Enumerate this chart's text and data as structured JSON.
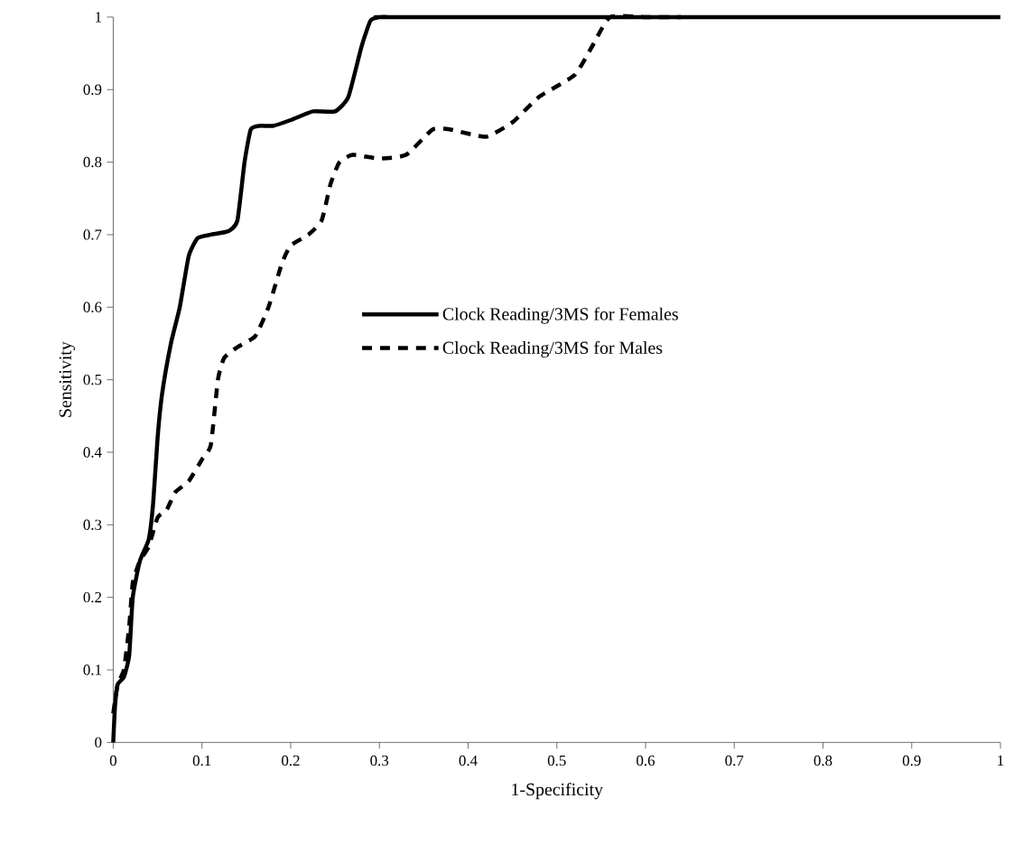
{
  "chart_data": {
    "type": "line",
    "xlabel": "1-Specificity",
    "ylabel": "Sensitivity",
    "xlim": [
      0,
      1
    ],
    "ylim": [
      0,
      1
    ],
    "xticks": [
      0,
      0.1,
      0.2,
      0.3,
      0.4,
      0.5,
      0.6,
      0.7,
      0.8,
      0.9,
      1
    ],
    "yticks": [
      0,
      0.1,
      0.2,
      0.3,
      0.4,
      0.5,
      0.6,
      0.7,
      0.8,
      0.9,
      1
    ],
    "grid": false,
    "legend": "center",
    "marker": "none",
    "series": [
      {
        "name": "Clock Reading/3MS for Females",
        "color": "#000000",
        "line_style": "solid",
        "x": [
          0,
          0.002,
          0.005,
          0.012,
          0.018,
          0.022,
          0.03,
          0.04,
          0.045,
          0.05,
          0.055,
          0.065,
          0.075,
          0.085,
          0.095,
          0.11,
          0.13,
          0.14,
          0.148,
          0.155,
          0.165,
          0.18,
          0.2,
          0.225,
          0.25,
          0.265,
          0.28,
          0.29,
          0.3,
          0.31,
          0.325,
          1
        ],
        "values": [
          0,
          0.05,
          0.08,
          0.09,
          0.12,
          0.2,
          0.25,
          0.28,
          0.33,
          0.42,
          0.48,
          0.55,
          0.6,
          0.67,
          0.695,
          0.7,
          0.705,
          0.72,
          0.8,
          0.845,
          0.85,
          0.85,
          0.858,
          0.87,
          0.87,
          0.89,
          0.96,
          0.995,
          1,
          1,
          1,
          1
        ]
      },
      {
        "name": "Clock Reading/3MS for Males",
        "color": "#000000",
        "line_style": "dashed",
        "x": [
          0,
          0.005,
          0.012,
          0.018,
          0.022,
          0.03,
          0.04,
          0.05,
          0.06,
          0.07,
          0.085,
          0.1,
          0.11,
          0.118,
          0.125,
          0.14,
          0.16,
          0.175,
          0.19,
          0.2,
          0.22,
          0.235,
          0.245,
          0.255,
          0.27,
          0.3,
          0.33,
          0.36,
          0.38,
          0.42,
          0.45,
          0.48,
          0.52,
          0.54,
          0.56,
          0.6,
          0.64
        ],
        "values": [
          0.04,
          0.08,
          0.1,
          0.16,
          0.22,
          0.25,
          0.27,
          0.31,
          0.32,
          0.345,
          0.36,
          0.39,
          0.41,
          0.5,
          0.53,
          0.545,
          0.56,
          0.6,
          0.66,
          0.685,
          0.7,
          0.72,
          0.77,
          0.8,
          0.81,
          0.805,
          0.81,
          0.845,
          0.845,
          0.835,
          0.855,
          0.89,
          0.92,
          0.96,
          1,
          1,
          1
        ]
      }
    ]
  }
}
